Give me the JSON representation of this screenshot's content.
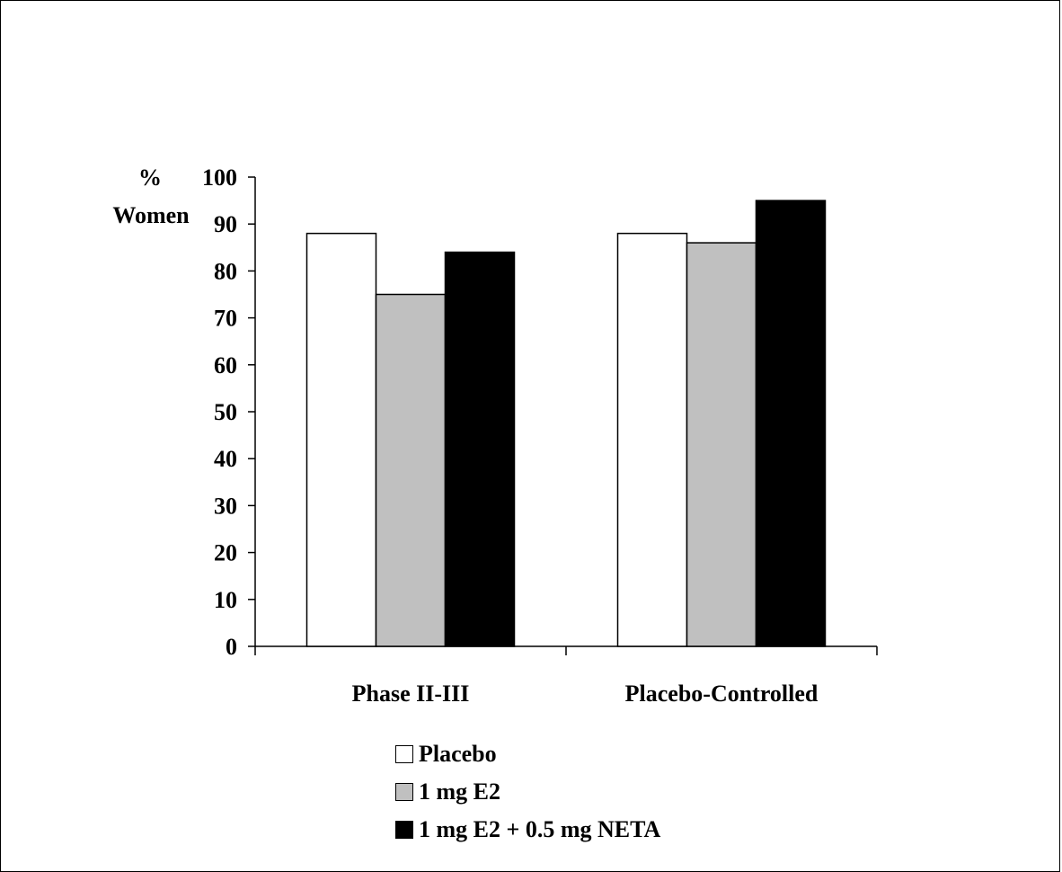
{
  "chart_data": {
    "type": "bar",
    "title": "",
    "ylabel": [
      "%",
      "Women"
    ],
    "xlabel": "",
    "ylim": [
      0,
      100
    ],
    "yticks": [
      0,
      10,
      20,
      30,
      40,
      50,
      60,
      70,
      80,
      90,
      100
    ],
    "categories": [
      "Phase II-III",
      "Placebo-Controlled"
    ],
    "series": [
      {
        "name": "Placebo",
        "color": "#ffffff",
        "values": [
          88,
          88
        ]
      },
      {
        "name": "1 mg E2",
        "color": "#c0c0c0",
        "values": [
          75,
          86
        ]
      },
      {
        "name": "1 mg E2 + 0.5 mg NETA",
        "color": "#000000",
        "values": [
          84,
          95
        ]
      }
    ],
    "legend_position": "bottom",
    "grid": false
  }
}
